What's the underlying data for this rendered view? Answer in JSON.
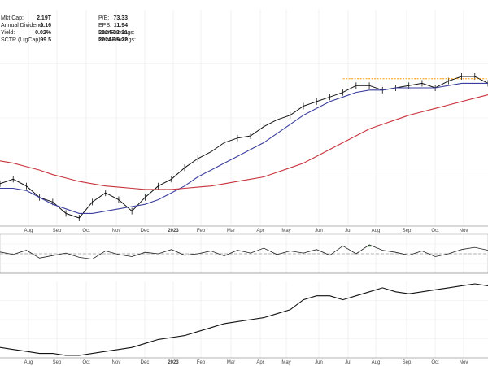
{
  "stats": {
    "left": [
      {
        "label": "Mkt Cap:",
        "value": "2.19T"
      },
      {
        "label": "Annual Dividend:",
        "value": "0.16"
      },
      {
        "label": "Yield:",
        "value": "0.02%"
      },
      {
        "label": "SCTR (LrgCap):",
        "value": "99.5"
      }
    ],
    "right": [
      {
        "label": "P/E:",
        "value": "73.33"
      },
      {
        "label": "EPS:",
        "value": "11.94"
      },
      {
        "label": "Last Earnings:",
        "value": "2024-02-21"
      },
      {
        "label": "Next Earnings:",
        "value": "2024-05-22"
      }
    ]
  },
  "chart_data": [
    {
      "type": "line",
      "panel": "price",
      "x_labels": [
        "Aug",
        "Sep",
        "Oct",
        "Nov",
        "Dec",
        "2023",
        "Feb",
        "Mar",
        "Apr",
        "May",
        "Jun",
        "Jul",
        "Aug",
        "Sep",
        "Oct",
        "Nov"
      ],
      "bold_labels": [
        "2023"
      ],
      "grid": true,
      "colors": {
        "price": "#111111",
        "ma_short": "#3b3f9e",
        "ma_long": "#c8323c",
        "resistance": "#ff9900"
      },
      "series": [
        {
          "key": "price",
          "values": [
            40,
            44,
            38,
            28,
            24,
            14,
            10,
            24,
            32,
            26,
            16,
            28,
            38,
            44,
            54,
            62,
            68,
            76,
            80,
            82,
            90,
            96,
            100,
            108,
            112,
            116,
            120,
            126,
            126,
            122,
            124,
            126,
            128,
            124,
            130,
            134,
            134,
            128
          ]
        },
        {
          "key": "ma_short",
          "values": [
            36,
            36,
            34,
            28,
            22,
            18,
            14,
            14,
            16,
            18,
            20,
            22,
            26,
            32,
            38,
            46,
            52,
            58,
            64,
            70,
            76,
            84,
            92,
            100,
            106,
            112,
            116,
            120,
            122,
            122,
            124,
            124,
            124,
            124,
            126,
            128,
            128,
            128
          ]
        },
        {
          "key": "ma_long",
          "values": [
            60,
            58,
            55,
            52,
            48,
            45,
            42,
            40,
            38,
            37,
            36,
            35,
            35,
            35,
            36,
            37,
            38,
            40,
            42,
            44,
            46,
            50,
            54,
            58,
            64,
            70,
            76,
            82,
            88,
            92,
            96,
            100,
            103,
            106,
            109,
            112,
            115,
            118
          ]
        }
      ],
      "horizontal_lines": [
        {
          "key": "resistance",
          "y": 132,
          "x_from_index": 26,
          "x_to_index": 37
        }
      ]
    },
    {
      "type": "line",
      "panel": "oscillator",
      "grid": true,
      "ylim": [
        0,
        100
      ],
      "reference_lines": [
        50
      ],
      "shaded_above": 70,
      "colors": {
        "line": "#222222",
        "shade": "#3f7f3f",
        "reference": "#999999"
      },
      "values": [
        55,
        48,
        60,
        38,
        45,
        52,
        40,
        35,
        58,
        48,
        42,
        54,
        50,
        62,
        46,
        50,
        58,
        44,
        60,
        52,
        66,
        48,
        58,
        52,
        62,
        46,
        72,
        50,
        75,
        60,
        54,
        46,
        58,
        42,
        50,
        62,
        68,
        60
      ]
    },
    {
      "type": "line",
      "panel": "relative",
      "x_labels": [
        "Aug",
        "Sep",
        "Oct",
        "Nov",
        "Dec",
        "2023",
        "Feb",
        "Mar",
        "Apr",
        "May",
        "Jun",
        "Jul",
        "Aug",
        "Sep",
        "Oct",
        "Nov"
      ],
      "bold_labels": [
        "2023"
      ],
      "grid": true,
      "colors": {
        "line": "#111111"
      },
      "values": [
        12,
        11,
        10,
        9,
        9,
        8,
        8,
        9,
        10,
        11,
        12,
        14,
        16,
        17,
        18,
        20,
        22,
        24,
        25,
        26,
        27,
        29,
        31,
        36,
        38,
        38,
        36,
        38,
        40,
        42,
        40,
        39,
        40,
        41,
        42,
        43,
        44,
        43
      ]
    }
  ]
}
